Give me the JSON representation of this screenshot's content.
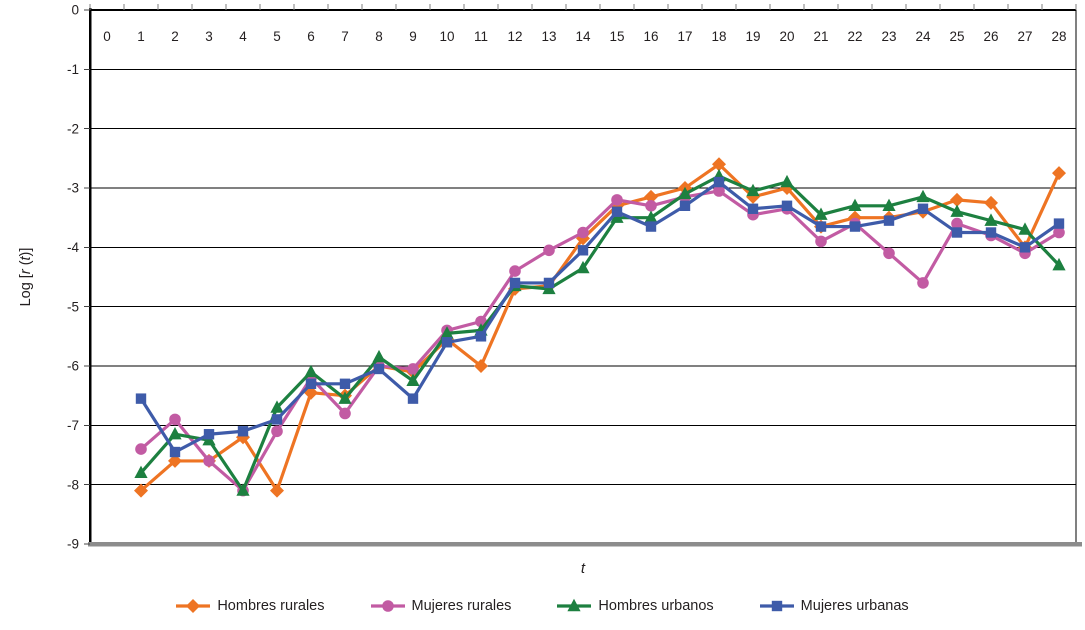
{
  "chart_data": {
    "type": "line",
    "title": "",
    "xlabel": "t",
    "ylabel": "Log [r (t)]",
    "x_axis_ticks": [
      0,
      1,
      2,
      3,
      4,
      5,
      6,
      7,
      8,
      9,
      10,
      11,
      12,
      13,
      14,
      15,
      16,
      17,
      18,
      19,
      20,
      21,
      22,
      23,
      24,
      25,
      26,
      27,
      28
    ],
    "yticks": [
      0,
      -1,
      -2,
      -3,
      -4,
      -5,
      -6,
      -7,
      -8,
      -9
    ],
    "ylim": [
      -9,
      0
    ],
    "grid": true,
    "legend_position": "bottom",
    "x": [
      1,
      2,
      3,
      4,
      5,
      6,
      7,
      8,
      9,
      10,
      11,
      12,
      13,
      14,
      15,
      16,
      17,
      18,
      19,
      20,
      21,
      22,
      23,
      24,
      25,
      26,
      27,
      28
    ],
    "series": [
      {
        "name": "Hombres rurales",
        "color": "#ee7423",
        "marker": "diamond",
        "values": [
          -8.1,
          -7.6,
          -7.6,
          -7.2,
          -8.1,
          -6.45,
          -6.5,
          -6.0,
          -6.1,
          -5.55,
          -6.0,
          -4.7,
          -4.65,
          -3.85,
          -3.3,
          -3.15,
          -3.0,
          -2.6,
          -3.15,
          -3.0,
          -3.65,
          -3.5,
          -3.5,
          -3.4,
          -3.2,
          -3.25,
          -4.0,
          -2.75
        ]
      },
      {
        "name": "Mujeres rurales",
        "color": "#c25ba3",
        "marker": "circle",
        "values": [
          -7.4,
          -6.9,
          -7.6,
          -8.1,
          -7.1,
          -6.2,
          -6.8,
          -6.0,
          -6.05,
          -5.4,
          -5.25,
          -4.4,
          -4.05,
          -3.75,
          -3.2,
          -3.3,
          -3.15,
          -3.05,
          -3.45,
          -3.35,
          -3.9,
          -3.6,
          -4.1,
          -4.6,
          -3.6,
          -3.8,
          -4.1,
          -3.75
        ]
      },
      {
        "name": "Hombres urbanos",
        "color": "#1d8040",
        "marker": "triangle",
        "values": [
          -7.8,
          -7.15,
          -7.25,
          -8.1,
          -6.7,
          -6.1,
          -6.55,
          -5.85,
          -6.25,
          -5.45,
          -5.4,
          -4.65,
          -4.7,
          -4.35,
          -3.5,
          -3.5,
          -3.1,
          -2.8,
          -3.05,
          -2.9,
          -3.45,
          -3.3,
          -3.3,
          -3.15,
          -3.4,
          -3.55,
          -3.7,
          -4.3
        ]
      },
      {
        "name": "Mujeres urbanas",
        "color": "#3e5ba9",
        "marker": "square",
        "values": [
          -6.55,
          -7.45,
          -7.15,
          -7.1,
          -6.9,
          -6.3,
          -6.3,
          -6.05,
          -6.55,
          -5.6,
          -5.5,
          -4.6,
          -4.6,
          -4.05,
          -3.4,
          -3.65,
          -3.3,
          -2.9,
          -3.35,
          -3.3,
          -3.65,
          -3.65,
          -3.55,
          -3.35,
          -3.75,
          -3.75,
          -4.0,
          -3.6
        ]
      }
    ],
    "axis_colors": {
      "grid": "#000000",
      "bottom_axis": "#8c8c8c",
      "tick": "#7f7f7f",
      "text": "#231f20"
    }
  }
}
